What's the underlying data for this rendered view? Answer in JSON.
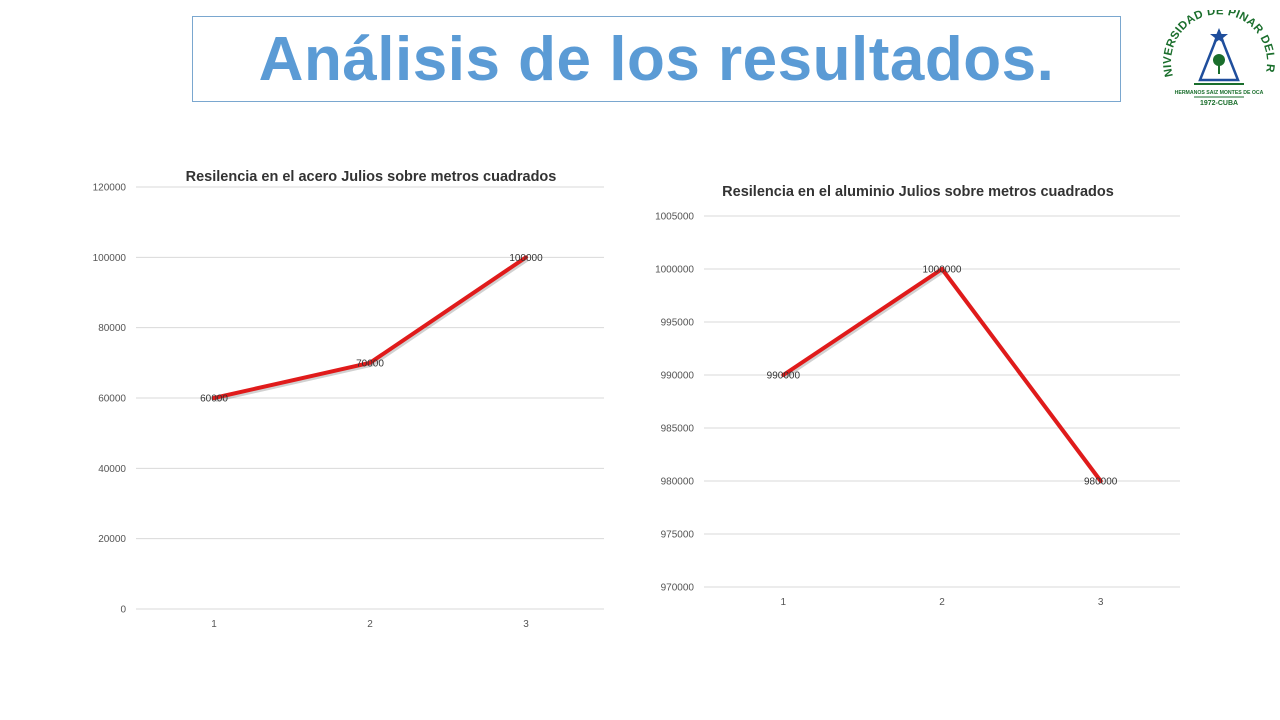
{
  "slide": {
    "title": "Análisis de los resultados."
  },
  "logo": {
    "arc_text": "UNIVERSIDAD DE PINAR DEL RIO",
    "bottom_text": "HERMANOS SAIZ MONTES DE OCA",
    "year_text": "1972-CUBA",
    "color": "#1a6e2c",
    "accent": "#1f4e9c"
  },
  "chart_data": [
    {
      "type": "line",
      "title": "Resilencia en el acero Julios sobre metros cuadrados",
      "categories": [
        "1",
        "2",
        "3"
      ],
      "series": [
        {
          "values": [
            60000,
            70000,
            100000
          ],
          "color": "#e01b1b"
        }
      ],
      "data_labels": [
        "60000",
        "70000",
        "100000"
      ],
      "ylim": [
        0,
        120000
      ],
      "yticks": [
        "0",
        "20000",
        "40000",
        "60000",
        "80000",
        "100000",
        "120000"
      ],
      "grid": true,
      "legend": "none"
    },
    {
      "type": "line",
      "title": "Resilencia en el aluminio Julios sobre metros cuadrados",
      "categories": [
        "1",
        "2",
        "3"
      ],
      "series": [
        {
          "values": [
            990000,
            1000000,
            980000
          ],
          "color": "#e01b1b"
        }
      ],
      "data_labels": [
        "990000",
        "1000000",
        "980000"
      ],
      "ylim": [
        970000,
        1005000
      ],
      "yticks": [
        "970000",
        "975000",
        "980000",
        "985000",
        "990000",
        "995000",
        "1000000",
        "1005000"
      ],
      "grid": true,
      "legend": "none"
    }
  ]
}
